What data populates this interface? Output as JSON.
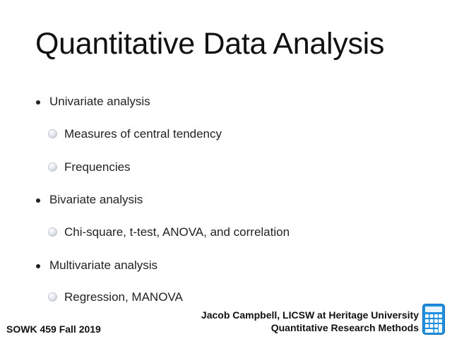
{
  "slide": {
    "title": "Quantitative Data Analysis",
    "bullets": [
      {
        "level": 1,
        "text": "Univariate analysis"
      },
      {
        "level": 2,
        "text": "Measures of central tendency"
      },
      {
        "level": 2,
        "text": "Frequencies"
      },
      {
        "level": 1,
        "text": "Bivariate analysis"
      },
      {
        "level": 2,
        "text": "Chi-square, t-test, ANOVA, and correlation"
      },
      {
        "level": 1,
        "text": "Multivariate analysis"
      },
      {
        "level": 2,
        "text": "Regression, MANOVA"
      }
    ]
  },
  "footer": {
    "course": "SOWK 459 Fall 2019",
    "author_line": "Jacob Campbell, LICSW at Heritage University",
    "course_title": "Quantitative Research Methods"
  },
  "icons": {
    "footer_icon": "calculator-icon",
    "icon_color": "#1f8fe0"
  }
}
